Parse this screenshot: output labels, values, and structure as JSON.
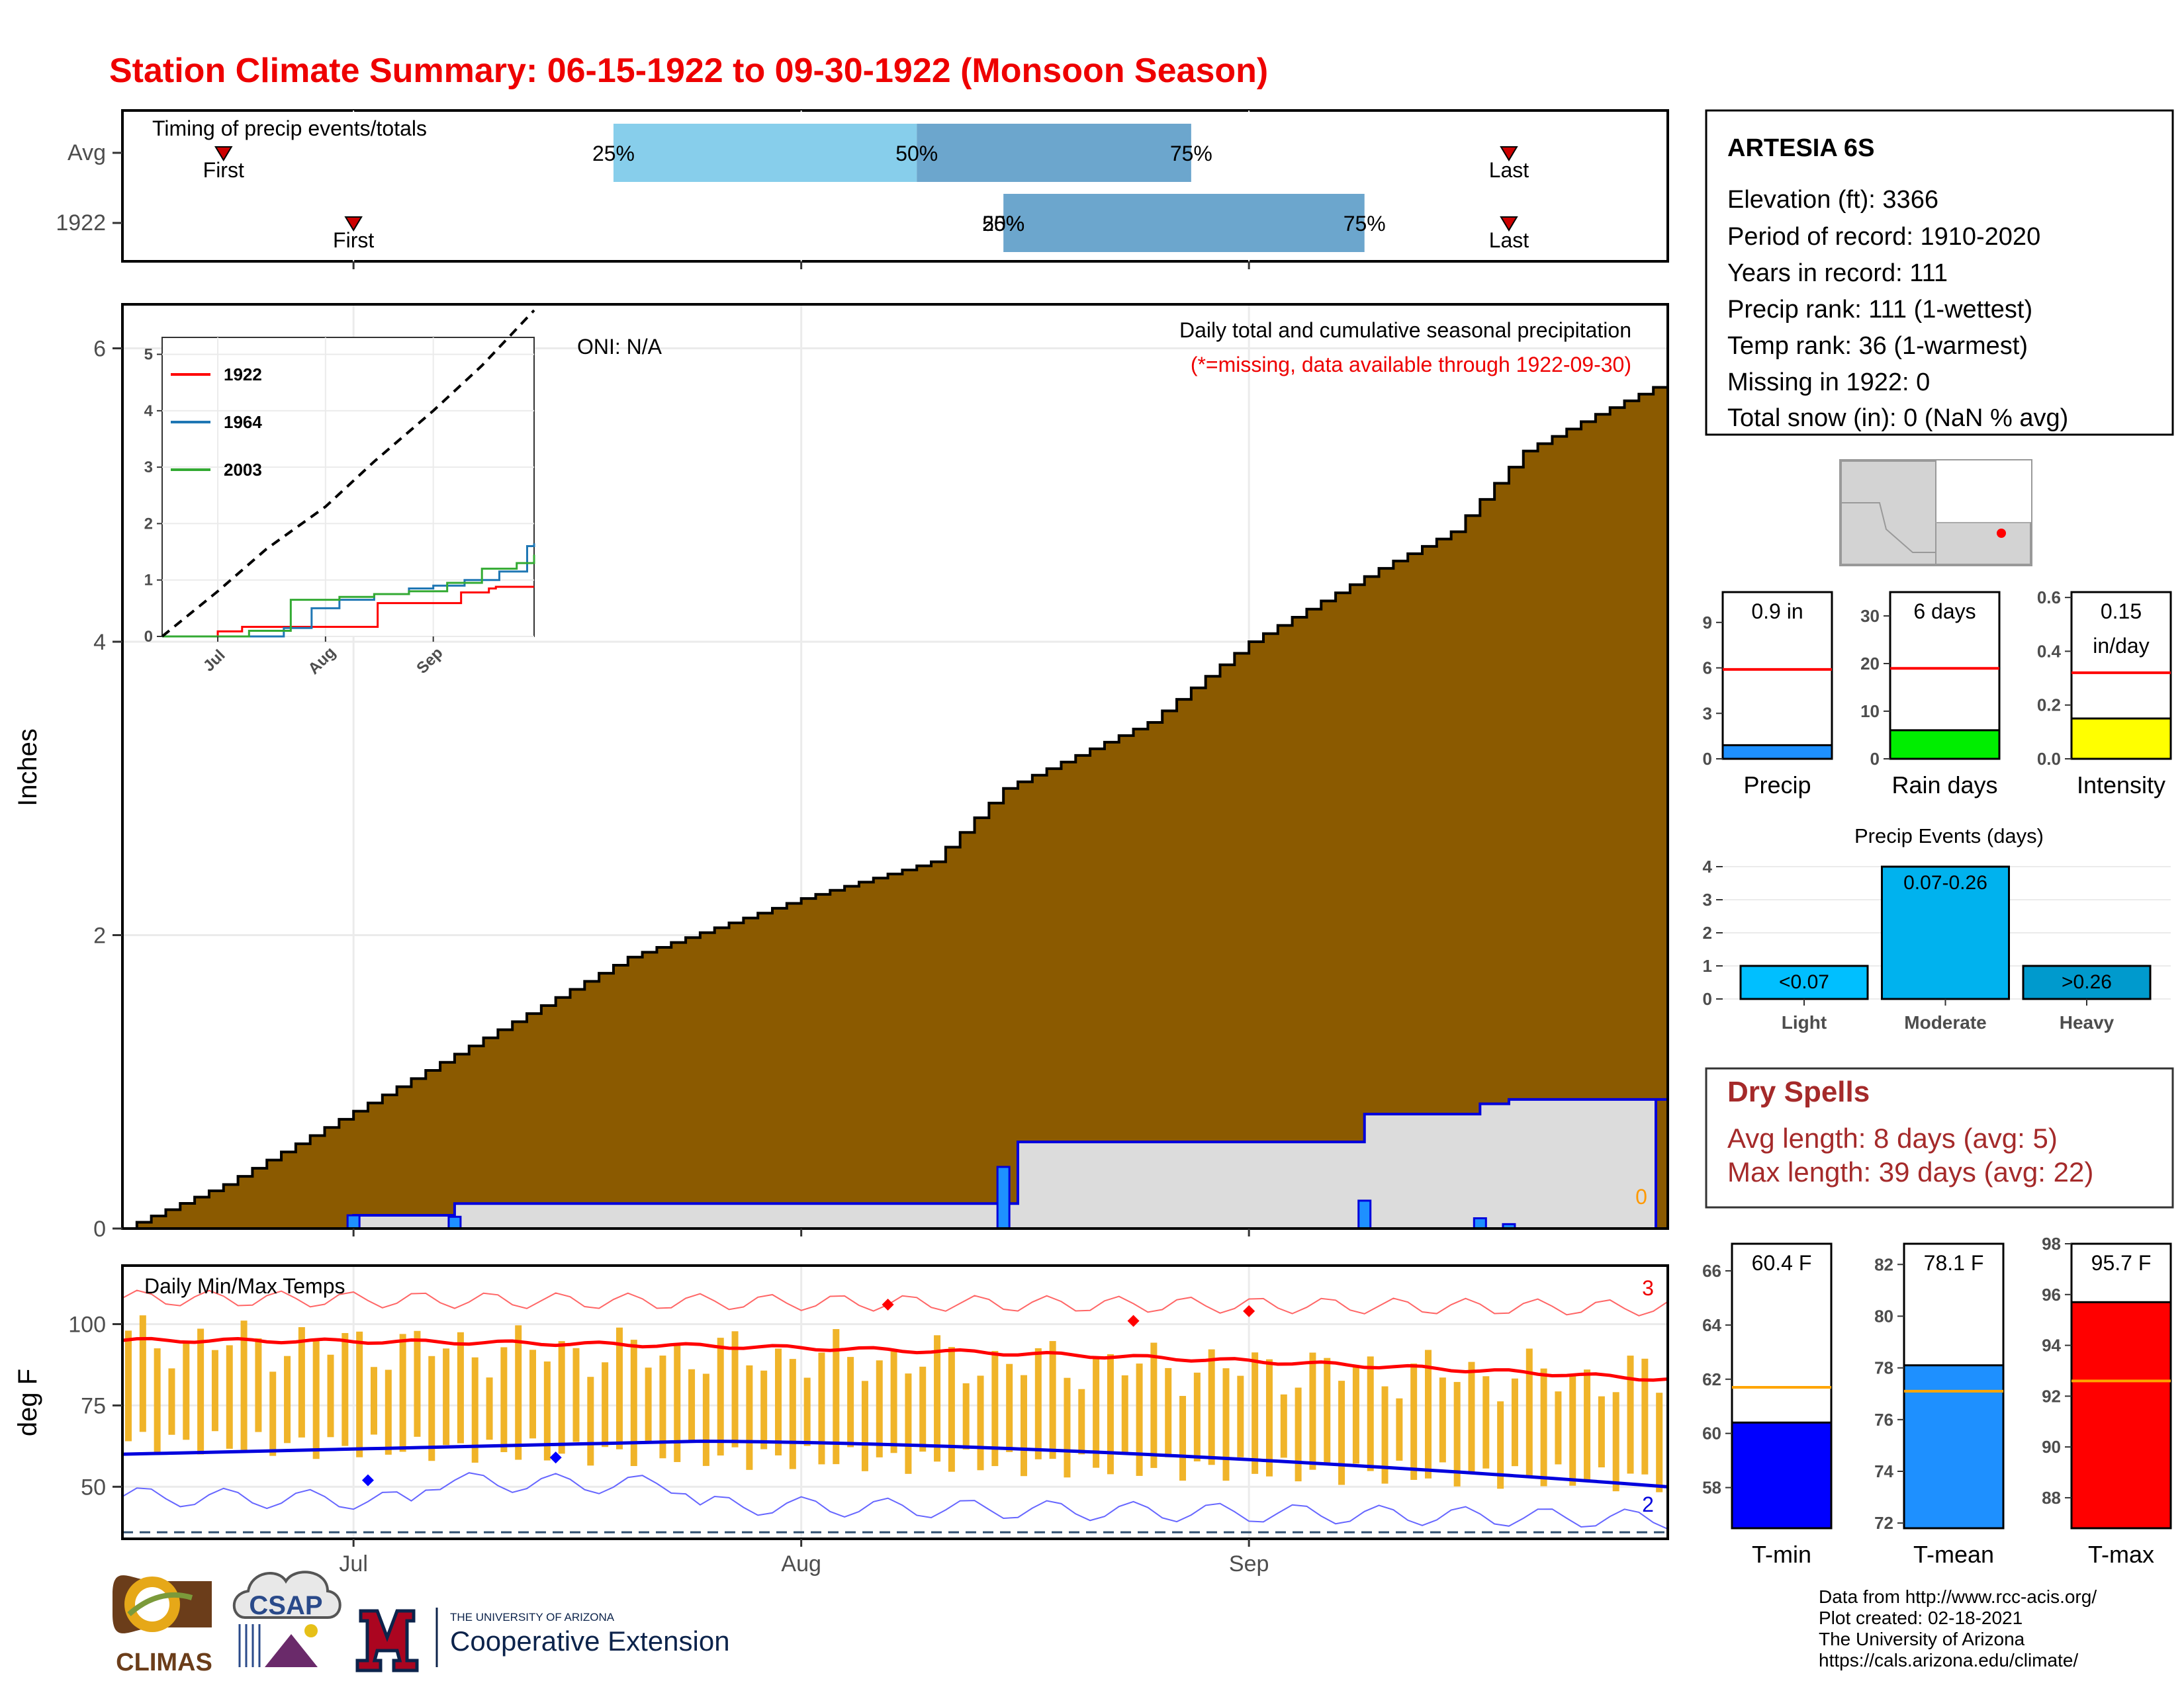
{
  "title": "Station Climate Summary: 06-15-1922 to 09-30-1922 (Monsoon Season)",
  "station": {
    "name": "ARTESIA 6S",
    "lines": [
      "Elevation (ft): 3366",
      "Period of record: 1910-2020",
      "Years in record: 111",
      "Precip rank: 111 (1-wettest)",
      "Temp rank: 36 (1-warmest)",
      "Missing in 1922: 0",
      "Total snow (in): 0 (NaN % avg)"
    ]
  },
  "colors": {
    "title": "#ee0000",
    "brown": "#8b5a00",
    "blue": "#0000dd",
    "light_blue_bar": "#87ceeb",
    "mid_blue_bar": "#6ca6cd",
    "red_line": "#ff0000",
    "orange_bars": "#f0b429",
    "gray_fill": "#dcdcdc",
    "dry_spell": "#a52a2a"
  },
  "month_labels": [
    "Jul",
    "Aug",
    "Sep"
  ],
  "chart_data": [
    {
      "id": "timing",
      "type": "bar",
      "title": "Timing of precip events/totals",
      "rows": [
        {
          "label": "Avg",
          "first": "06-22",
          "q25": "07-19",
          "q50": "08-09",
          "q75": "08-28",
          "last": "09-19",
          "marker_labels": [
            "First",
            "25%",
            "50%",
            "75%",
            "Last"
          ]
        },
        {
          "label": "1922",
          "first": "07-01",
          "q25": "08-15",
          "q50": "08-15",
          "q75": "09-09",
          "last": "09-19",
          "marker_labels": [
            "First",
            "25%",
            "50%",
            "75%",
            "Last"
          ]
        }
      ]
    },
    {
      "id": "precip-main",
      "type": "area",
      "ylabel": "Inches",
      "ylim": [
        0,
        6.3
      ],
      "yticks": [
        0,
        2,
        4,
        6
      ],
      "oni": "ONI: N/A",
      "note_title": "Daily total and cumulative seasonal precipitation",
      "note_missing": "(*=missing, data available through 1922-09-30)",
      "missing_count": "0",
      "avg_cumulative": {
        "dates": [
          "06-15",
          "06-22",
          "07-01",
          "07-10",
          "07-20",
          "08-01",
          "08-10",
          "08-15",
          "08-25",
          "09-01",
          "09-10",
          "09-15",
          "09-20",
          "09-25",
          "09-30"
        ],
        "values": [
          0,
          0.3,
          0.8,
          1.3,
          1.85,
          2.25,
          2.5,
          3.0,
          3.45,
          4.0,
          4.5,
          4.75,
          5.3,
          5.55,
          5.78
        ]
      },
      "cumulative_1922": {
        "dates": [
          "06-15",
          "07-01",
          "07-08",
          "08-15",
          "08-16",
          "09-09",
          "09-17",
          "09-19",
          "09-30"
        ],
        "values": [
          0,
          0.09,
          0.17,
          0.17,
          0.59,
          0.78,
          0.85,
          0.88,
          0.88
        ]
      },
      "daily_1922": {
        "dates": [
          "07-01",
          "07-08",
          "08-15",
          "09-09",
          "09-17",
          "09-19"
        ],
        "values": [
          0.09,
          0.08,
          0.42,
          0.19,
          0.07,
          0.03
        ]
      }
    },
    {
      "id": "inset",
      "type": "line",
      "ylim": [
        0,
        5.3
      ],
      "yticks": [
        0,
        1,
        2,
        3,
        4,
        5
      ],
      "xticks": [
        "Jul",
        "Aug",
        "Sep"
      ],
      "series": [
        {
          "name": "1922",
          "color": "#ff0000",
          "dates": [
            "06-15",
            "07-01",
            "07-08",
            "08-15",
            "08-16",
            "09-09",
            "09-17",
            "09-19",
            "09-30"
          ],
          "values": [
            0,
            0.09,
            0.17,
            0.17,
            0.59,
            0.78,
            0.85,
            0.88,
            0.88
          ]
        },
        {
          "name": "1964",
          "color": "#1f77b4",
          "dates": [
            "06-15",
            "07-20",
            "07-28",
            "08-05",
            "08-15",
            "08-25",
            "09-01",
            "09-10",
            "09-20",
            "09-28",
            "09-30"
          ],
          "values": [
            0,
            0.15,
            0.5,
            0.65,
            0.75,
            0.85,
            0.9,
            1.0,
            1.15,
            1.6,
            1.65
          ]
        },
        {
          "name": "2003",
          "color": "#33aa33",
          "dates": [
            "06-15",
            "07-10",
            "07-22",
            "08-05",
            "08-15",
            "08-25",
            "09-05",
            "09-15",
            "09-25",
            "09-30"
          ],
          "values": [
            0,
            0.1,
            0.65,
            0.7,
            0.75,
            0.8,
            0.95,
            1.2,
            1.3,
            1.45
          ]
        },
        {
          "name": "avg",
          "color": "#000000",
          "dashed": true,
          "dates": [
            "06-15",
            "07-01",
            "07-15",
            "08-01",
            "08-15",
            "09-01",
            "09-15",
            "09-30"
          ],
          "values": [
            0,
            0.8,
            1.55,
            2.3,
            3.1,
            4.0,
            4.8,
            5.78
          ]
        }
      ]
    },
    {
      "id": "temps",
      "type": "line",
      "title": "Daily Min/Max Temps",
      "ylabel": "deg F",
      "ylim": [
        34,
        118
      ],
      "yticks": [
        50,
        75,
        100
      ],
      "record_high_count": "3",
      "record_low_count": "2",
      "avg_max_start": 95,
      "avg_max_end": 83,
      "avg_min_start": 60,
      "avg_min_mid": 64,
      "avg_min_end": 50,
      "record_high_level": 108,
      "record_low_start": 47,
      "record_low_end": 40,
      "freeze_line": 32
    },
    {
      "id": "precip-total",
      "type": "bar",
      "title": "0.9 in",
      "xlabel": "Precip",
      "ylim": [
        0,
        11
      ],
      "yticks": [
        0,
        3,
        6,
        9
      ],
      "value": 0.9,
      "avg": 5.9,
      "color": "#1e90ff"
    },
    {
      "id": "rain-days",
      "type": "bar",
      "title": "6 days",
      "xlabel": "Rain days",
      "ylim": [
        0,
        35
      ],
      "yticks": [
        0,
        10,
        20,
        30
      ],
      "value": 6,
      "avg": 19,
      "color": "#00ee00"
    },
    {
      "id": "intensity",
      "type": "bar",
      "title_line1": "0.15",
      "title_line2": "in/day",
      "xlabel": "Intensity",
      "ylim": [
        0,
        0.62
      ],
      "yticks": [
        "0.0",
        "0.2",
        "0.4",
        "0.6"
      ],
      "value": 0.15,
      "avg": 0.32,
      "color": "#ffff00"
    },
    {
      "id": "precip-events",
      "type": "bar",
      "title": "Precip Events (days)",
      "ylim": [
        0,
        4.2
      ],
      "yticks": [
        0,
        1,
        2,
        3,
        4
      ],
      "categories": [
        "Light",
        "Moderate",
        "Heavy"
      ],
      "bar_labels": [
        "<0.07",
        "0.07-0.26",
        ">0.26"
      ],
      "values": [
        1,
        4,
        1
      ],
      "bar_colors": [
        "#00bfff",
        "#00b2ee",
        "#009acd"
      ]
    },
    {
      "id": "t-min",
      "type": "bar",
      "title": "60.4 F",
      "xlabel": "T-min",
      "ylim": [
        56.5,
        67
      ],
      "yticks": [
        58,
        60,
        62,
        64,
        66
      ],
      "value": 60.4,
      "avg": 61.7,
      "color": "#0000ff"
    },
    {
      "id": "t-mean",
      "type": "bar",
      "title": "78.1 F",
      "xlabel": "T-mean",
      "ylim": [
        71.8,
        82.8
      ],
      "yticks": [
        72,
        74,
        76,
        78,
        80,
        82
      ],
      "value": 78.1,
      "avg": 77.1,
      "color": "#1e90ff"
    },
    {
      "id": "t-max",
      "type": "bar",
      "title": "95.7 F",
      "xlabel": "T-max",
      "ylim": [
        86.8,
        98
      ],
      "yticks": [
        88,
        90,
        92,
        94,
        96,
        98
      ],
      "value": 95.7,
      "avg": 92.6,
      "color": "#ff0000"
    }
  ],
  "dry_spells": {
    "title": "Dry Spells",
    "avg": "Avg length: 8 days (avg: 5)",
    "max": "Max length: 39 days (avg: 22)"
  },
  "logos": {
    "climas": "CLIMAS",
    "csap": "CSAP",
    "ua_small": "THE UNIVERSITY OF ARIZONA",
    "ua_big": "Cooperative Extension"
  },
  "footer": [
    "Data from http://www.rcc-acis.org/",
    "Plot created: 02-18-2021",
    "The University of Arizona",
    "https://cals.arizona.edu/climate/"
  ]
}
